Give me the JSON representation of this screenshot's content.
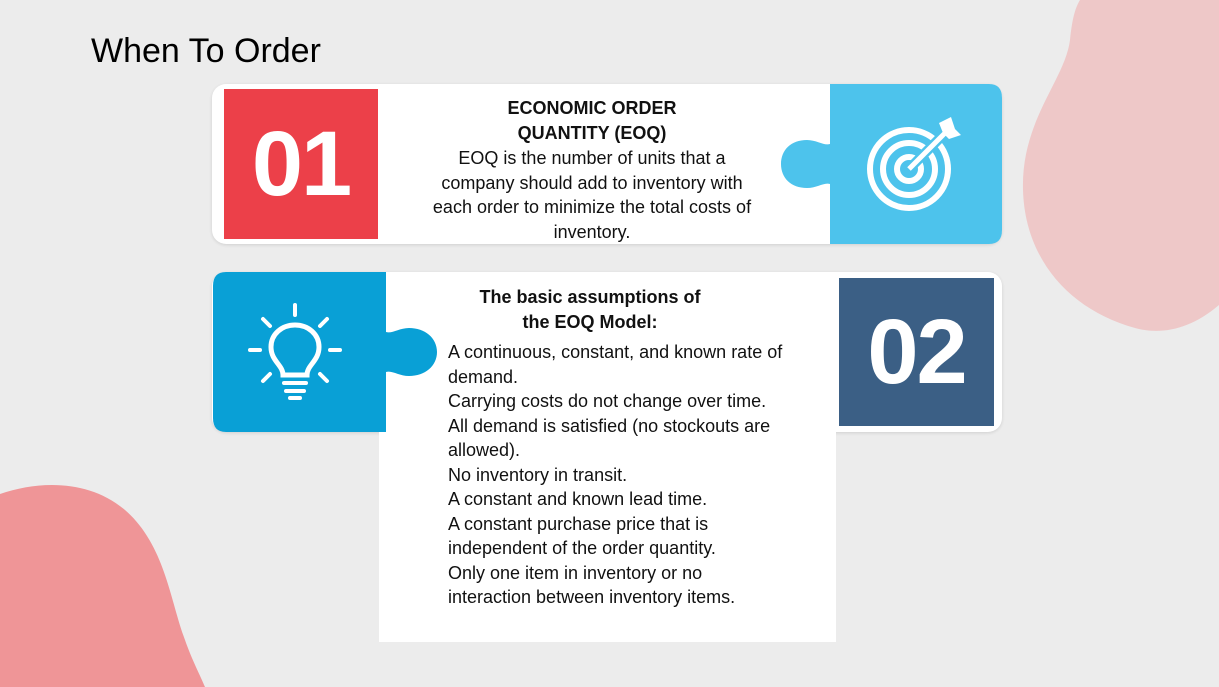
{
  "slide": {
    "title": "When To Order"
  },
  "card1": {
    "number": "01",
    "heading_line1": "ECONOMIC ORDER",
    "heading_line2": "QUANTITY (EOQ)",
    "body_lines": [
      "EOQ is the number of units that a",
      "company should add to inventory with",
      "each order to minimize the total costs of",
      "inventory."
    ],
    "icon": "target-icon"
  },
  "card2": {
    "number": "02",
    "heading_line1": "The basic assumptions of",
    "heading_line2": "the EOQ Model:",
    "icon": "lightbulb-icon",
    "items": [
      "A continuous, constant, and known rate of",
      "demand.",
      "Carrying costs do not change over time.",
      "All demand is satisfied (no stockouts are",
      "allowed).",
      "No inventory in transit.",
      "A constant and known lead time.",
      "A constant purchase price that is",
      "independent of the order quantity.",
      "Only one item in inventory or no",
      "interaction between inventory items."
    ]
  },
  "colors": {
    "background": "#ececec",
    "red": "#ec4049",
    "sky_blue": "#4dc3ec",
    "blue": "#09a0d6",
    "navy": "#3b5f85",
    "blob_top": "#eec8c8",
    "blob_bottom": "#ef9597"
  }
}
